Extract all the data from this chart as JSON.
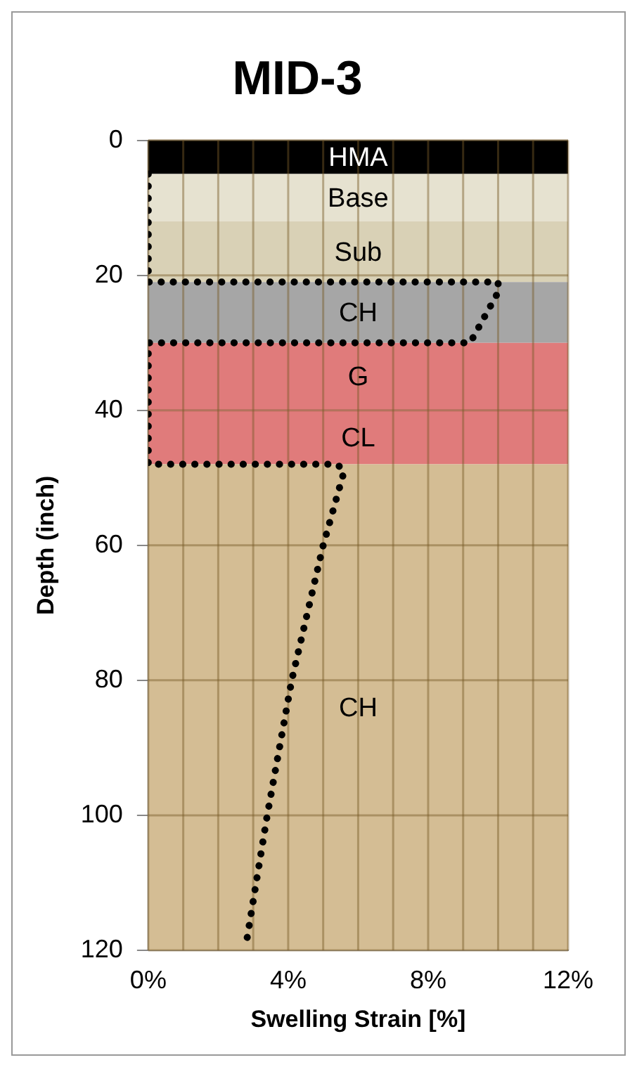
{
  "chart_data": {
    "type": "line",
    "title": "MID-3",
    "xlabel": "Swelling Strain [%]",
    "ylabel": "Depth (inch)",
    "x": [
      0,
      0,
      10,
      10,
      9.2,
      0,
      0,
      5.4,
      5.6,
      5,
      4.1,
      3.4,
      2.8
    ],
    "series": [
      {
        "color": "#000000",
        "values": [
          5,
          21,
          21,
          22.5,
          30,
          30,
          48,
          48,
          49,
          60,
          80,
          100,
          119
        ]
      }
    ],
    "xlim": [
      0,
      12
    ],
    "xticks": [
      {
        "value": 0,
        "label": "0%"
      },
      {
        "value": 1,
        "label": null
      },
      {
        "value": 2,
        "label": null
      },
      {
        "value": 3,
        "label": null
      },
      {
        "value": 4,
        "label": "4%"
      },
      {
        "value": 5,
        "label": null
      },
      {
        "value": 6,
        "label": null
      },
      {
        "value": 7,
        "label": null
      },
      {
        "value": 8,
        "label": "8%"
      },
      {
        "value": 9,
        "label": null
      },
      {
        "value": 10,
        "label": null
      },
      {
        "value": 11,
        "label": null
      },
      {
        "value": 12,
        "label": "12%"
      }
    ],
    "ylim": [
      120,
      0
    ],
    "yticks": [
      0,
      20,
      40,
      60,
      80,
      100,
      120
    ],
    "bands": [
      {
        "axis": "y",
        "from": 0,
        "to": 5,
        "label": "HMA",
        "color": "#000000"
      },
      {
        "axis": "y",
        "from": 5,
        "to": 12,
        "label": "Base",
        "color": "#e6e2d0"
      },
      {
        "axis": "y",
        "from": 12,
        "to": 21,
        "label": "Sub",
        "color": "#d9d1b6"
      },
      {
        "axis": "y",
        "from": 21,
        "to": 30,
        "label": "CH",
        "color": "#a6a6a6"
      },
      {
        "axis": "y",
        "from": 30,
        "to": 40,
        "label": "G",
        "color": "#e07b7b"
      },
      {
        "axis": "y",
        "from": 40,
        "to": 48,
        "label": "CL",
        "color": "#e07b7b"
      },
      {
        "axis": "y",
        "from": 48,
        "to": 120,
        "label": "CH",
        "color": "#d4bd94"
      }
    ],
    "grid": true,
    "legend": false,
    "marker": "none",
    "line_style": "dotted"
  }
}
